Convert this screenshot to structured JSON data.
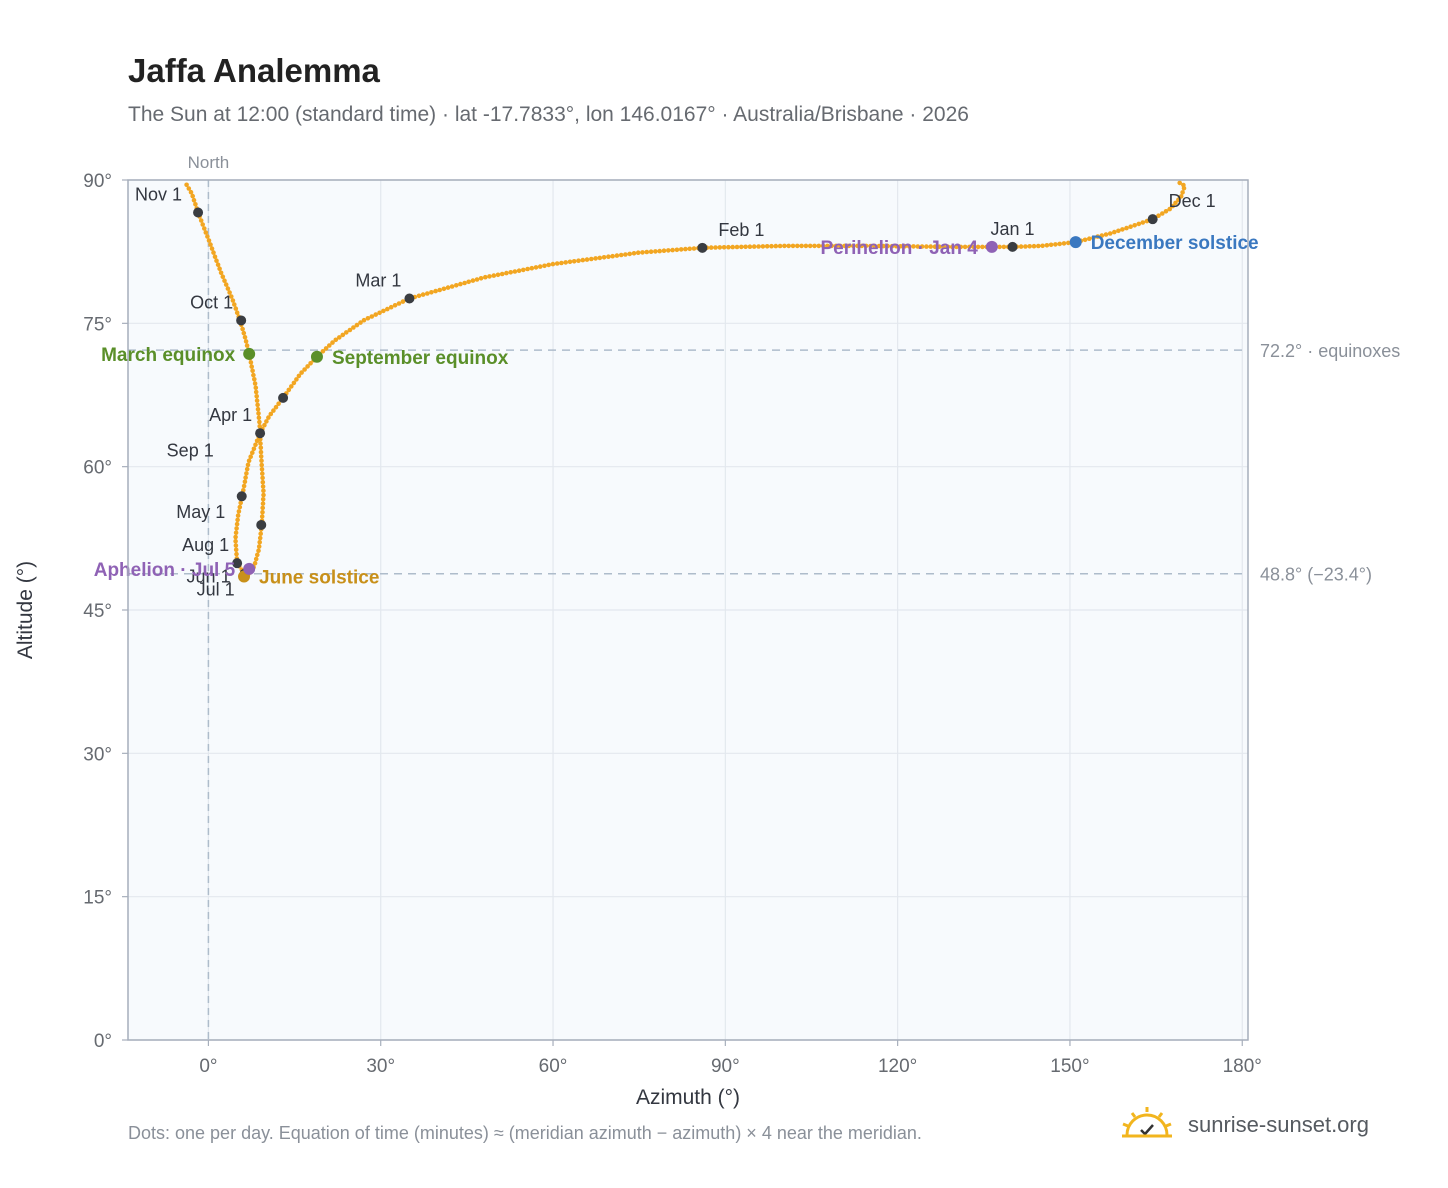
{
  "header": {
    "title": "Jaffa Analemma",
    "subtitle": "The Sun at 12:00 (standard time) · lat -17.7833°, lon 146.0167° · Australia/Brisbane · 2026"
  },
  "footer": {
    "note": "Dots: one per day. Equation of time (minutes) ≈ (meridian azimuth − azimuth) × 4 near the meridian.",
    "brand": "sunrise-sunset.org",
    "brand_icon": "sun-check-icon"
  },
  "colors": {
    "curve": "#f2a622",
    "month_dot": "#3a3d42",
    "equinox": "#5a8f29",
    "june_solstice": "#c8901a",
    "december_solstice": "#3a78c0",
    "aphelion_perihelion": "#8f62b5",
    "grid": "#e3e8ee",
    "plot_bg": "#f7fafd",
    "reference_line": "#aebccb"
  },
  "chart_data": {
    "type": "scatter",
    "xlabel": "Azimuth (°)",
    "ylabel": "Altitude (°)",
    "xlim": [
      -14,
      181
    ],
    "ylim": [
      0,
      90
    ],
    "x_ticks": [
      0,
      30,
      60,
      90,
      120,
      150,
      180
    ],
    "x_tick_labels": [
      "0°",
      "30°",
      "60°",
      "90°",
      "120°",
      "150°",
      "180°"
    ],
    "y_ticks": [
      0,
      15,
      30,
      45,
      60,
      75,
      90
    ],
    "y_tick_labels": [
      "0°",
      "15°",
      "30°",
      "45°",
      "60°",
      "75°",
      "90°"
    ],
    "grid": true,
    "meridian_line": {
      "x": 0,
      "label": "North"
    },
    "reference_lines": [
      {
        "y": 72.2,
        "label": "72.2° · equinoxes"
      },
      {
        "y": 48.8,
        "label": "48.8° (−23.4°)"
      }
    ],
    "path_points": [
      [
        -3.8,
        89.5
      ],
      [
        -2.9,
        88.6
      ],
      [
        -1.8,
        86.6
      ],
      [
        0.2,
        83.5
      ],
      [
        2.2,
        80.3
      ],
      [
        4.2,
        77.5
      ],
      [
        5.5,
        75.3
      ],
      [
        6.4,
        73.5
      ],
      [
        7.1,
        71.8
      ],
      [
        8.2,
        68.5
      ],
      [
        8.9,
        64.5
      ],
      [
        9.2,
        61.0
      ],
      [
        9.6,
        57.2
      ],
      [
        9.3,
        54.0
      ],
      [
        8.8,
        51.4
      ],
      [
        8.0,
        49.6
      ],
      [
        7.1,
        48.8
      ],
      [
        6.3,
        48.8
      ],
      [
        5.0,
        49.9
      ],
      [
        4.7,
        52.5
      ],
      [
        5.2,
        55.0
      ],
      [
        5.9,
        57.0
      ],
      [
        7.0,
        60.5
      ],
      [
        9.0,
        63.5
      ],
      [
        10.6,
        65.3
      ],
      [
        13.0,
        67.2
      ],
      [
        16.0,
        69.7
      ],
      [
        18.9,
        71.5
      ],
      [
        22.0,
        73.2
      ],
      [
        27.0,
        75.3
      ],
      [
        35.0,
        77.6
      ],
      [
        48.0,
        79.8
      ],
      [
        60.0,
        81.2
      ],
      [
        75.0,
        82.4
      ],
      [
        86.0,
        82.9
      ],
      [
        100.0,
        83.1
      ],
      [
        115.0,
        83.1
      ],
      [
        130.0,
        83.0
      ],
      [
        136.4,
        83.0
      ],
      [
        140.0,
        83.0
      ],
      [
        145.0,
        83.1
      ],
      [
        151.0,
        83.5
      ],
      [
        157.0,
        84.4
      ],
      [
        161.0,
        85.2
      ],
      [
        164.4,
        85.9
      ],
      [
        167.5,
        87.0
      ],
      [
        169.4,
        88.3
      ],
      [
        170.0,
        89.4
      ],
      [
        169.1,
        89.7
      ]
    ],
    "month_markers": [
      {
        "label": "Jan 1",
        "x": 140.0,
        "y": 83.0,
        "label_pos": "above"
      },
      {
        "label": "Feb 1",
        "x": 86.0,
        "y": 82.9,
        "label_pos": "above-right"
      },
      {
        "label": "Mar 1",
        "x": 35.0,
        "y": 77.6,
        "label_pos": "above-left"
      },
      {
        "label": "Apr 1",
        "x": 9.0,
        "y": 63.5,
        "label_pos": "above-left"
      },
      {
        "label": "May 1",
        "x": 9.2,
        "y": 53.9,
        "label_pos": "upper-far-left"
      },
      {
        "label": "Jun 1",
        "x": 13.0,
        "y": 67.2,
        "label_pos": "none"
      },
      {
        "label": "Jul 1",
        "x": 6.3,
        "y": 48.8,
        "label_pos": "below-left"
      },
      {
        "label": "Aug 1",
        "x": 5.0,
        "y": 49.9,
        "label_pos": "above-left"
      },
      {
        "label": "Sep 1",
        "x": 5.8,
        "y": 56.9,
        "label_pos": "far-left-up"
      },
      {
        "label": "Oct 1",
        "x": 5.7,
        "y": 75.3,
        "label_pos": "above-left"
      },
      {
        "label": "Nov 1",
        "x": -1.8,
        "y": 86.6,
        "label_pos": "upper-left"
      },
      {
        "label": "Dec 1",
        "x": 164.4,
        "y": 85.9,
        "label_pos": "above-right"
      }
    ],
    "extra_label": {
      "label": "Jun 1",
      "x": 6.3,
      "y": 48.8
    },
    "events": [
      {
        "name": "March equinox",
        "x": 7.1,
        "y": 71.8,
        "color_key": "equinox",
        "label_side": "left"
      },
      {
        "name": "September equinox",
        "x": 18.9,
        "y": 71.5,
        "color_key": "equinox",
        "label_side": "right"
      },
      {
        "name": "June solstice",
        "x": 6.2,
        "y": 48.5,
        "color_key": "june_solstice",
        "label_side": "right"
      },
      {
        "name": "December solstice",
        "x": 151.0,
        "y": 83.5,
        "color_key": "december_solstice",
        "label_side": "right"
      },
      {
        "name": "Aphelion · Jul 5",
        "x": 7.1,
        "y": 49.3,
        "color_key": "aphelion_perihelion",
        "label_side": "left"
      },
      {
        "name": "Perihelion · Jan 4",
        "x": 136.4,
        "y": 83.0,
        "color_key": "aphelion_perihelion",
        "label_side": "left"
      }
    ]
  }
}
